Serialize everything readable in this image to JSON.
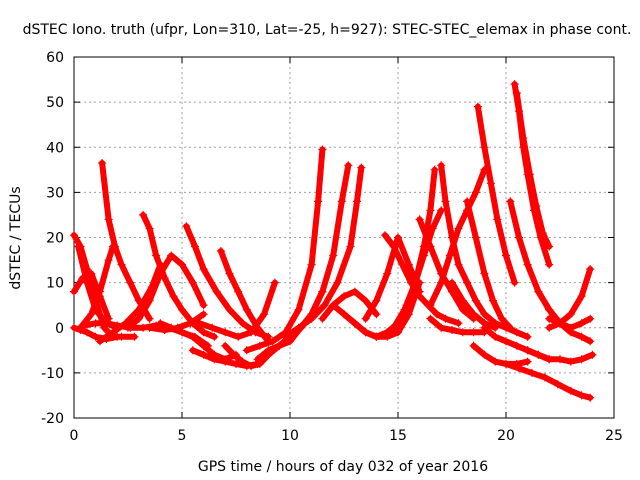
{
  "chart_data": {
    "type": "scatter",
    "title": "dSTEC Iono. truth (ufpr, Lon=310, Lat=-25, h=927): STEC-STEC_elemax in phase cont.",
    "xlabel": "GPS time / hours of day 032 of year 2016",
    "ylabel": "dSTEC  / TECUs",
    "xlim": [
      0,
      25
    ],
    "ylim": [
      -20,
      60
    ],
    "xticks": [
      0,
      5,
      10,
      15,
      20,
      25
    ],
    "yticks": [
      -20,
      -10,
      0,
      10,
      20,
      30,
      40,
      50,
      60
    ],
    "grid": true,
    "marker": "plus",
    "color": "#ff0000",
    "series": [
      {
        "x": [
          0.0,
          0.3,
          0.6,
          1.0,
          1.4,
          1.8,
          2.2,
          2.8
        ],
        "y": [
          20.5,
          18,
          13,
          6,
          0,
          -2,
          -2,
          -2
        ]
      },
      {
        "x": [
          0.0,
          0.3,
          0.6,
          1.0,
          1.5,
          2.0
        ],
        "y": [
          0,
          -0.5,
          -1,
          -2,
          -2.5,
          -2
        ]
      },
      {
        "x": [
          0.0,
          0.4,
          0.8,
          1.2,
          1.6
        ],
        "y": [
          8,
          11,
          12,
          7,
          2
        ]
      },
      {
        "x": [
          0.2,
          0.6,
          1.0,
          1.5,
          2.0
        ],
        "y": [
          18,
          10,
          4,
          1,
          0
        ]
      },
      {
        "x": [
          0.3,
          0.8,
          1.2,
          1.6,
          1.8
        ],
        "y": [
          0,
          3,
          8,
          15,
          18
        ]
      },
      {
        "x": [
          1.3,
          1.6,
          1.9,
          2.2,
          2.6,
          3.0,
          3.5
        ],
        "y": [
          36.5,
          24,
          18,
          14,
          10,
          6,
          2
        ]
      },
      {
        "x": [
          1.2,
          1.8,
          2.4,
          3.0,
          3.6,
          4.0
        ],
        "y": [
          -3,
          -1,
          1,
          4,
          9,
          14
        ]
      },
      {
        "x": [
          0.5,
          1.0,
          1.5,
          2.0,
          2.6,
          3.2,
          3.8,
          4.4,
          5.0,
          5.6,
          6.2
        ],
        "y": [
          0.5,
          1,
          1,
          0.5,
          0,
          0,
          0.5,
          0,
          -1,
          -2,
          -4
        ]
      },
      {
        "x": [
          3.2,
          3.5,
          3.8,
          4.2,
          4.6,
          5.0,
          5.5,
          6.0,
          6.5
        ],
        "y": [
          25,
          22,
          16,
          11,
          7,
          4,
          1,
          -1,
          -2
        ]
      },
      {
        "x": [
          2.5,
          3.0,
          3.5,
          4.0,
          4.5,
          5.0,
          5.5,
          6.0
        ],
        "y": [
          0,
          2,
          6,
          12,
          16,
          14,
          10,
          5
        ]
      },
      {
        "x": [
          4.0,
          4.5,
          5.0,
          5.5,
          6.0,
          6.5,
          7.0,
          7.5
        ],
        "y": [
          1,
          0,
          -1,
          -2,
          -4,
          -6,
          -7,
          -6
        ]
      },
      {
        "x": [
          5.2,
          5.6,
          6.0,
          6.6,
          7.2,
          7.8,
          8.4,
          9.0
        ],
        "y": [
          22.5,
          18,
          13,
          8,
          4,
          1,
          -1,
          -2
        ]
      },
      {
        "x": [
          6.8,
          7.2,
          7.6,
          8.0,
          8.5,
          9.0
        ],
        "y": [
          17,
          12,
          8,
          4,
          0,
          -3
        ]
      },
      {
        "x": [
          5.5,
          6.0,
          6.5,
          7.0,
          7.5,
          8.0,
          8.5
        ],
        "y": [
          -5,
          -6,
          -7,
          -7.5,
          -8,
          -8.5,
          -8
        ]
      },
      {
        "x": [
          3.5,
          4.2,
          4.8,
          5.4,
          6.0
        ],
        "y": [
          0,
          -0.5,
          0,
          1,
          3
        ]
      },
      {
        "x": [
          5.8,
          6.4,
          7.0,
          7.6,
          8.2,
          8.8,
          9.3
        ],
        "y": [
          1,
          0,
          -1,
          -2,
          -1,
          3,
          10
        ]
      },
      {
        "x": [
          8.5,
          9.0,
          9.5,
          10.0,
          10.5,
          11.0,
          11.5
        ],
        "y": [
          -7,
          -5,
          -4,
          -3,
          0,
          3,
          8
        ]
      },
      {
        "x": [
          7.0,
          7.4,
          7.8,
          8.2,
          8.6,
          9.0,
          9.5,
          10.0
        ],
        "y": [
          -4,
          -6,
          -7.5,
          -8.5,
          -8,
          -6,
          -4,
          -2
        ]
      },
      {
        "x": [
          8.0,
          8.6,
          9.2,
          9.8,
          10.4,
          11.0,
          11.3,
          11.5
        ],
        "y": [
          -5,
          -4,
          -3,
          -1,
          4,
          14,
          28,
          39.5
        ]
      },
      {
        "x": [
          9.5,
          10.0,
          10.5,
          11.0,
          11.5,
          12.0,
          12.4,
          12.7
        ],
        "y": [
          -4,
          -2,
          0,
          3,
          8,
          16,
          28,
          36
        ]
      },
      {
        "x": [
          9.8,
          10.4,
          11.0,
          11.6,
          12.2,
          12.8,
          13.1,
          13.3
        ],
        "y": [
          -2,
          0,
          2,
          5,
          10,
          18,
          28,
          35.5
        ]
      },
      {
        "x": [
          11.5,
          12.0,
          12.5,
          13.0,
          13.5,
          14.0
        ],
        "y": [
          2,
          5,
          7,
          8,
          6,
          3
        ]
      },
      {
        "x": [
          12.0,
          12.5,
          13.0,
          13.5,
          14.0,
          14.5,
          15.0
        ],
        "y": [
          5,
          3,
          1,
          -1,
          -2,
          -1,
          1
        ]
      },
      {
        "x": [
          12.5,
          13.0,
          13.5,
          14.0,
          14.5,
          15.0,
          15.5,
          16.0
        ],
        "y": [
          3,
          1,
          -1,
          -2,
          -2,
          -1,
          3,
          10
        ]
      },
      {
        "x": [
          13.5,
          14.0,
          14.5,
          15.0,
          15.5,
          16.0
        ],
        "y": [
          2,
          6,
          12,
          20,
          14,
          8
        ]
      },
      {
        "x": [
          14.4,
          14.8,
          15.2,
          15.6,
          16.0,
          16.4,
          16.8,
          17.2,
          17.8
        ],
        "y": [
          20.5,
          18,
          14,
          10,
          7,
          5,
          3,
          2,
          1
        ]
      },
      {
        "x": [
          15.0,
          15.4,
          15.8,
          16.2,
          16.6,
          17.0
        ],
        "y": [
          0,
          5,
          10,
          16,
          22,
          26
        ]
      },
      {
        "x": [
          14.8,
          15.3,
          15.8,
          16.2,
          16.5,
          16.7
        ],
        "y": [
          0,
          4,
          10,
          18,
          26,
          35
        ]
      },
      {
        "x": [
          16.0,
          16.5,
          17.0,
          17.5,
          18.0,
          18.5
        ],
        "y": [
          24,
          18,
          12,
          8,
          4,
          2
        ]
      },
      {
        "x": [
          16.5,
          17.0,
          17.4,
          17.8,
          18.2,
          18.6,
          19.0
        ],
        "y": [
          5,
          10,
          16,
          22,
          26,
          30,
          35
        ]
      },
      {
        "x": [
          17.0,
          17.2,
          17.5,
          17.8,
          18.2,
          18.6,
          19.0,
          19.5,
          20.0,
          20.5,
          21.0
        ],
        "y": [
          36,
          28,
          20,
          14,
          10,
          6,
          3,
          1,
          0,
          -1,
          -2
        ]
      },
      {
        "x": [
          17.5,
          18.0,
          18.5,
          19.0,
          19.5
        ],
        "y": [
          10,
          6,
          3,
          1,
          0
        ]
      },
      {
        "x": [
          16.5,
          17.0,
          17.5,
          18.0,
          18.5,
          19.0
        ],
        "y": [
          2,
          0,
          -0.5,
          -1,
          -1,
          -1
        ]
      },
      {
        "x": [
          18.2,
          18.6,
          19.0,
          19.4,
          19.8,
          20.2
        ],
        "y": [
          28,
          20,
          12,
          6,
          2,
          0
        ]
      },
      {
        "x": [
          18.7,
          19.0,
          19.3,
          19.6,
          20.0,
          20.4
        ],
        "y": [
          49,
          40,
          32,
          24,
          16,
          10
        ]
      },
      {
        "x": [
          18.5,
          19.0,
          19.5,
          20.0,
          20.5,
          21.0
        ],
        "y": [
          -4,
          -6,
          -7.5,
          -8,
          -8,
          -7.5
        ]
      },
      {
        "x": [
          19.0,
          19.5,
          20.0,
          20.5,
          21.0,
          21.5,
          22.0
        ],
        "y": [
          0,
          -2,
          -3,
          -4,
          -5,
          -6,
          -7
        ]
      },
      {
        "x": [
          20.4,
          20.6,
          20.8,
          21.0,
          21.3,
          21.6,
          22.0
        ],
        "y": [
          54,
          48,
          40,
          34,
          26,
          20,
          14
        ]
      },
      {
        "x": [
          20.5,
          20.8,
          21.1,
          21.4,
          21.7,
          22.0
        ],
        "y": [
          52,
          42,
          34,
          27,
          21,
          18
        ]
      },
      {
        "x": [
          20.2,
          20.6,
          21.0,
          21.5,
          22.0,
          22.5
        ],
        "y": [
          28,
          20,
          14,
          8,
          4,
          1
        ]
      },
      {
        "x": [
          21.0,
          21.5,
          22.0,
          22.5,
          23.0,
          23.5,
          24.0
        ],
        "y": [
          -5,
          -6,
          -7,
          -7,
          -7.5,
          -7,
          -6
        ]
      },
      {
        "x": [
          20.0,
          20.6,
          21.2,
          21.8,
          22.4,
          23.0,
          23.5,
          23.9
        ],
        "y": [
          -8,
          -9,
          -10,
          -11,
          -12.5,
          -14,
          -15,
          -15.5
        ]
      },
      {
        "x": [
          22.0,
          22.5,
          23.0,
          23.5,
          23.9
        ],
        "y": [
          0,
          1,
          3,
          7,
          13
        ]
      },
      {
        "x": [
          22.0,
          22.5,
          23.0,
          23.5,
          23.9
        ],
        "y": [
          2,
          1,
          0,
          1,
          2
        ]
      },
      {
        "x": [
          21.5,
          22.0,
          22.5,
          23.0,
          23.5,
          23.9
        ],
        "y": [
          8,
          4,
          1,
          -1,
          -2,
          -3
        ]
      }
    ]
  }
}
